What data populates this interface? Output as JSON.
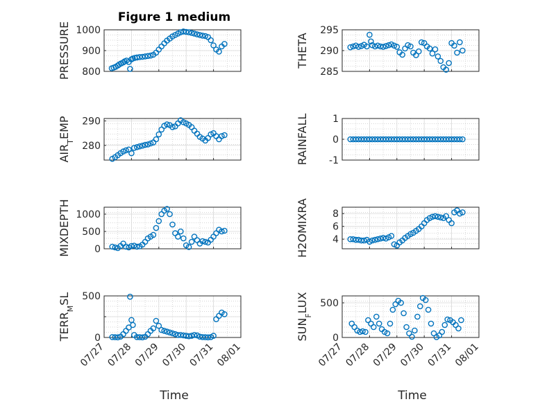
{
  "figure": {
    "title": "Figure 1 medium",
    "marker_color": "#0072BD",
    "x_tick_labels": [
      "07/27",
      "07/28",
      "07/29",
      "07/30",
      "07/31",
      "08/01"
    ],
    "xlabel": "Time"
  },
  "chart_data": [
    {
      "type": "scatter",
      "ylabel": "PRESSURE",
      "ylim": [
        800,
        1000
      ],
      "yticks": [
        800,
        900,
        1000
      ],
      "ytick_labels": [
        "800",
        "900",
        "1000"
      ],
      "x": [
        0.28,
        0.35,
        0.42,
        0.5,
        0.55,
        0.62,
        0.7,
        0.75,
        0.82,
        0.9,
        0.95,
        1.0,
        1.05,
        1.12,
        1.2,
        1.3,
        1.4,
        1.5,
        1.6,
        1.7,
        1.8,
        1.9,
        2.0,
        2.1,
        2.2,
        2.3,
        2.4,
        2.5,
        2.6,
        2.7,
        2.8,
        2.9,
        3.0,
        3.1,
        3.2,
        3.3,
        3.4,
        3.5,
        3.6,
        3.7,
        3.8,
        3.9,
        4.0,
        4.1,
        4.2,
        4.3,
        4.4
      ],
      "y": [
        815,
        818,
        822,
        828,
        833,
        838,
        843,
        848,
        852,
        845,
        812,
        858,
        862,
        865,
        867,
        869,
        870,
        872,
        874,
        876,
        880,
        890,
        905,
        920,
        935,
        948,
        958,
        968,
        975,
        982,
        988,
        992,
        990,
        988,
        985,
        982,
        978,
        975,
        972,
        970,
        965,
        950,
        925,
        905,
        895,
        920,
        932
      ],
      "marker": "o",
      "grid": true
    },
    {
      "type": "scatter",
      "ylabel": "THETA",
      "ylim": [
        285,
        295
      ],
      "yticks": [
        285,
        290,
        295
      ],
      "ytick_labels": [
        "285",
        "290",
        "295"
      ],
      "x": [
        0.3,
        0.4,
        0.5,
        0.6,
        0.7,
        0.8,
        0.9,
        1.0,
        1.05,
        1.1,
        1.2,
        1.3,
        1.4,
        1.5,
        1.6,
        1.7,
        1.8,
        1.9,
        2.0,
        2.1,
        2.2,
        2.3,
        2.4,
        2.5,
        2.6,
        2.7,
        2.8,
        2.9,
        3.0,
        3.1,
        3.2,
        3.3,
        3.4,
        3.5,
        3.6,
        3.7,
        3.8,
        3.9,
        4.0,
        4.1,
        4.2,
        4.3,
        4.4
      ],
      "y": [
        290.8,
        291.0,
        291.2,
        290.9,
        291.1,
        291.4,
        291.0,
        293.8,
        292.2,
        291.3,
        291.0,
        291.2,
        291.0,
        290.9,
        291.1,
        291.3,
        291.5,
        291.2,
        290.9,
        289.6,
        289.0,
        290.5,
        291.3,
        291.0,
        289.5,
        288.9,
        289.8,
        292.0,
        291.8,
        291.0,
        290.5,
        289.3,
        290.3,
        288.6,
        287.5,
        286.0,
        285.4,
        287.0,
        291.8,
        291.2,
        289.5,
        292.0,
        290.0
      ],
      "marker": "o",
      "grid": true
    },
    {
      "type": "scatter",
      "ylabel": "AIR_TEMP",
      "ylim": [
        274,
        291
      ],
      "yticks": [
        280,
        290
      ],
      "ytick_labels": [
        "280",
        "290"
      ],
      "x": [
        0.3,
        0.4,
        0.5,
        0.6,
        0.7,
        0.8,
        0.9,
        1.0,
        1.1,
        1.2,
        1.3,
        1.4,
        1.5,
        1.6,
        1.7,
        1.8,
        1.9,
        2.0,
        2.1,
        2.2,
        2.3,
        2.4,
        2.5,
        2.6,
        2.7,
        2.8,
        2.9,
        3.0,
        3.1,
        3.2,
        3.3,
        3.4,
        3.5,
        3.6,
        3.7,
        3.8,
        3.9,
        4.0,
        4.1,
        4.2,
        4.3,
        4.4
      ],
      "y": [
        274.5,
        275.2,
        276.0,
        276.8,
        277.5,
        278.0,
        278.3,
        276.8,
        279.0,
        279.3,
        279.6,
        279.9,
        280.2,
        280.4,
        280.8,
        281.2,
        282.5,
        284.5,
        286.5,
        288.0,
        288.6,
        288.3,
        287.5,
        287.8,
        289.0,
        290.3,
        289.5,
        289.0,
        288.4,
        287.5,
        286.0,
        284.8,
        283.5,
        282.8,
        282.0,
        283.0,
        284.5,
        285.0,
        283.8,
        282.5,
        283.8,
        284.2
      ],
      "marker": "o",
      "grid": true
    },
    {
      "type": "scatter",
      "ylabel": "RAINFALL",
      "ylim": [
        -1,
        1
      ],
      "yticks": [
        -1,
        0,
        1
      ],
      "ytick_labels": [
        "-1",
        "0",
        "1"
      ],
      "x": [
        0.3,
        0.4,
        0.5,
        0.6,
        0.7,
        0.8,
        0.9,
        1.0,
        1.1,
        1.2,
        1.3,
        1.4,
        1.5,
        1.6,
        1.7,
        1.8,
        1.9,
        2.0,
        2.1,
        2.2,
        2.3,
        2.4,
        2.5,
        2.6,
        2.7,
        2.8,
        2.9,
        3.0,
        3.1,
        3.2,
        3.3,
        3.4,
        3.5,
        3.6,
        3.7,
        3.8,
        3.9,
        4.0,
        4.1,
        4.2,
        4.3,
        4.4
      ],
      "y": [
        0,
        0,
        0,
        0,
        0,
        0,
        0,
        0,
        0,
        0,
        0,
        0,
        0,
        0,
        0,
        0,
        0,
        0,
        0,
        0,
        0,
        0,
        0,
        0,
        0,
        0,
        0,
        0,
        0,
        0,
        0,
        0,
        0,
        0,
        0,
        0,
        0,
        0,
        0,
        0,
        0,
        0
      ],
      "marker": "o",
      "grid": true
    },
    {
      "type": "scatter",
      "ylabel": "MIXDEPTH",
      "ylim": [
        0,
        1200
      ],
      "yticks": [
        0,
        500,
        1000
      ],
      "ytick_labels": [
        "0",
        "500",
        "1000"
      ],
      "x": [
        0.3,
        0.4,
        0.5,
        0.6,
        0.7,
        0.8,
        0.9,
        1.0,
        1.1,
        1.2,
        1.3,
        1.4,
        1.5,
        1.6,
        1.7,
        1.8,
        1.9,
        2.0,
        2.1,
        2.2,
        2.3,
        2.4,
        2.5,
        2.6,
        2.7,
        2.8,
        2.9,
        3.0,
        3.1,
        3.2,
        3.3,
        3.4,
        3.5,
        3.6,
        3.7,
        3.8,
        3.9,
        4.0,
        4.1,
        4.2,
        4.3,
        4.4
      ],
      "y": [
        60,
        40,
        20,
        80,
        150,
        60,
        40,
        80,
        90,
        60,
        70,
        120,
        200,
        300,
        350,
        400,
        600,
        800,
        1000,
        1100,
        1150,
        1000,
        700,
        450,
        350,
        500,
        300,
        100,
        50,
        200,
        350,
        250,
        150,
        220,
        200,
        180,
        260,
        350,
        450,
        550,
        500,
        520
      ],
      "marker": "o",
      "grid": true
    },
    {
      "type": "scatter",
      "ylabel": "H2OMIXRA",
      "ylim": [
        2.5,
        9
      ],
      "yticks": [
        4,
        6,
        8
      ],
      "ytick_labels": [
        "4",
        "6",
        "8"
      ],
      "x": [
        0.3,
        0.4,
        0.5,
        0.6,
        0.7,
        0.8,
        0.9,
        1.0,
        1.1,
        1.2,
        1.3,
        1.4,
        1.5,
        1.6,
        1.7,
        1.8,
        1.9,
        2.0,
        2.1,
        2.2,
        2.3,
        2.4,
        2.5,
        2.6,
        2.7,
        2.8,
        2.9,
        3.0,
        3.1,
        3.2,
        3.3,
        3.4,
        3.5,
        3.6,
        3.7,
        3.8,
        3.9,
        4.0,
        4.1,
        4.2,
        4.3,
        4.4
      ],
      "y": [
        4.0,
        4.0,
        3.9,
        3.9,
        3.8,
        3.8,
        3.9,
        3.6,
        3.8,
        3.9,
        4.0,
        4.1,
        4.2,
        4.1,
        4.3,
        4.5,
        3.2,
        3.0,
        3.5,
        3.8,
        4.2,
        4.5,
        4.8,
        5.0,
        5.3,
        5.6,
        6.0,
        6.5,
        7.0,
        7.3,
        7.5,
        7.6,
        7.5,
        7.4,
        7.3,
        7.6,
        7.0,
        6.5,
        8.2,
        8.5,
        8.0,
        8.2
      ],
      "marker": "o",
      "grid": true
    },
    {
      "type": "scatter",
      "ylabel": "TERR_MSL",
      "ylim": [
        0,
        500
      ],
      "yticks": [
        0,
        250,
        500
      ],
      "ytick_labels": [
        "0",
        "",
        "500"
      ],
      "x": [
        0.3,
        0.4,
        0.5,
        0.6,
        0.7,
        0.8,
        0.9,
        0.95,
        1.0,
        1.05,
        1.1,
        1.2,
        1.3,
        1.4,
        1.5,
        1.6,
        1.7,
        1.8,
        1.9,
        2.0,
        2.1,
        2.2,
        2.3,
        2.4,
        2.5,
        2.6,
        2.7,
        2.8,
        2.9,
        3.0,
        3.1,
        3.2,
        3.3,
        3.4,
        3.5,
        3.6,
        3.7,
        3.8,
        3.9,
        4.0,
        4.1,
        4.2,
        4.3,
        4.4
      ],
      "y": [
        5,
        3,
        2,
        10,
        40,
        80,
        120,
        490,
        210,
        150,
        30,
        5,
        3,
        2,
        8,
        40,
        80,
        110,
        200,
        140,
        90,
        80,
        70,
        60,
        50,
        40,
        30,
        30,
        25,
        20,
        15,
        20,
        30,
        25,
        10,
        5,
        3,
        2,
        5,
        20,
        220,
        260,
        300,
        280
      ],
      "marker": "o",
      "grid": true
    },
    {
      "type": "scatter",
      "ylabel": "SUN_FLUX",
      "ylim": [
        0,
        600
      ],
      "yticks": [
        0,
        500
      ],
      "ytick_labels": [
        "0",
        "500"
      ],
      "x": [
        0.35,
        0.45,
        0.55,
        0.65,
        0.75,
        0.85,
        0.95,
        1.05,
        1.15,
        1.25,
        1.35,
        1.45,
        1.55,
        1.65,
        1.75,
        1.85,
        1.95,
        2.05,
        2.15,
        2.25,
        2.35,
        2.45,
        2.55,
        2.65,
        2.75,
        2.85,
        2.95,
        3.05,
        3.15,
        3.25,
        3.35,
        3.45,
        3.55,
        3.65,
        3.75,
        3.85,
        3.95,
        4.05,
        4.15,
        4.25,
        4.35
      ],
      "y": [
        200,
        150,
        100,
        80,
        90,
        80,
        250,
        200,
        150,
        300,
        200,
        120,
        80,
        60,
        200,
        400,
        480,
        530,
        500,
        350,
        150,
        60,
        10,
        100,
        300,
        450,
        570,
        540,
        400,
        200,
        60,
        5,
        30,
        80,
        180,
        260,
        250,
        220,
        180,
        130,
        250
      ],
      "marker": "o",
      "grid": true
    }
  ]
}
